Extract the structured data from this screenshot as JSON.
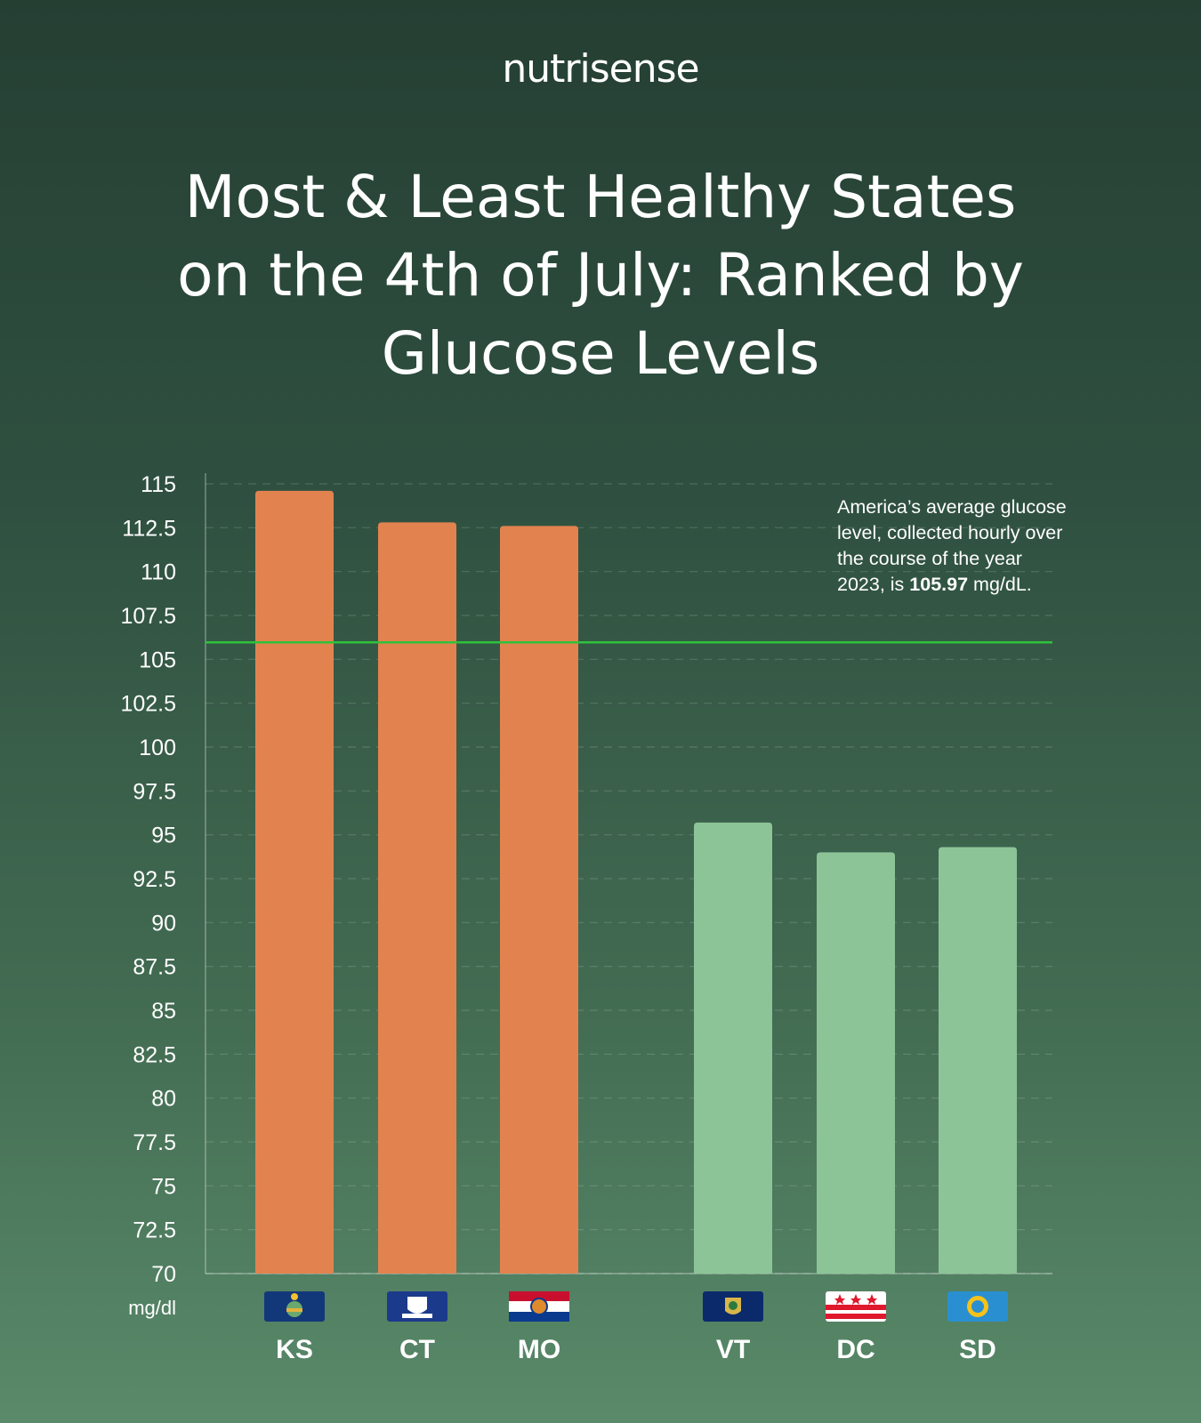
{
  "brand": "nutrisense",
  "title_lines": [
    "Most & Least Healthy States",
    "on the 4th of July: Ranked by",
    "Glucose Levels"
  ],
  "annotation": {
    "text": "America’s average glucose level, collected hourly over the course of the year 2023, is",
    "value": "105.97",
    "unit": "mg/dL."
  },
  "colors": {
    "least_healthy": "#e2834f",
    "most_healthy": "#8cc497",
    "average_line": "#2fc23a"
  },
  "chart_data": {
    "type": "bar",
    "categories": [
      "KS",
      "CT",
      "MO",
      "VT",
      "DC",
      "SD"
    ],
    "values": [
      114.6,
      112.8,
      112.6,
      95.7,
      94.0,
      94.3
    ],
    "groups": [
      "least-healthy",
      "least-healthy",
      "least-healthy",
      "most-healthy",
      "most-healthy",
      "most-healthy"
    ],
    "flag_icons": [
      "kansas-flag-icon",
      "connecticut-flag-icon",
      "missouri-flag-icon",
      "vermont-flag-icon",
      "dc-flag-icon",
      "south-dakota-flag-icon"
    ],
    "reference_line": {
      "value": 105.97
    },
    "yticks": [
      "115",
      "112.5",
      "110",
      "107.5",
      "105",
      "102.5",
      "100",
      "97.5",
      "95",
      "92.5",
      "90",
      "87.5",
      "85",
      "82.5",
      "80",
      "77.5",
      "75",
      "72.5",
      "70"
    ],
    "ylabel": "mg/dl",
    "ylim": [
      70,
      115
    ],
    "grid": true
  }
}
